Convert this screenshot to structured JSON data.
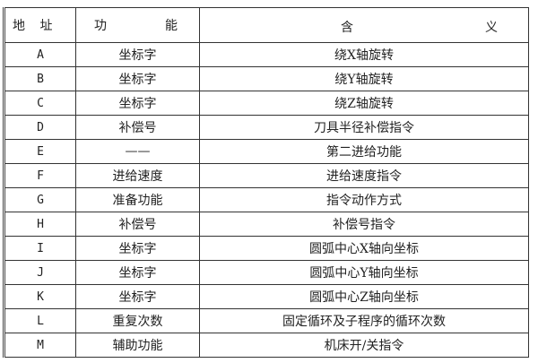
{
  "header": {
    "address": "地 址",
    "function_a": "功",
    "function_b": "能",
    "meaning_a": "含",
    "meaning_b": "义"
  },
  "rows": [
    {
      "address": "A",
      "function": "坐标字",
      "meaning": "绕X轴旋转"
    },
    {
      "address": "B",
      "function": "坐标字",
      "meaning": "绕Y轴旋转"
    },
    {
      "address": "C",
      "function": "坐标字",
      "meaning": "绕Z轴旋转"
    },
    {
      "address": "D",
      "function": "补偿号",
      "meaning": "刀具半径补偿指令"
    },
    {
      "address": "E",
      "function": "——",
      "meaning": "第二进给功能"
    },
    {
      "address": "F",
      "function": "进给速度",
      "meaning": "进给速度指令"
    },
    {
      "address": "G",
      "function": "准备功能",
      "meaning": "指令动作方式"
    },
    {
      "address": "H",
      "function": "补偿号",
      "meaning": "补偿号指令"
    },
    {
      "address": "I",
      "function": "坐标字",
      "meaning": "圆弧中心X轴向坐标"
    },
    {
      "address": "J",
      "function": "坐标字",
      "meaning": "圆弧中心Y轴向坐标"
    },
    {
      "address": "K",
      "function": "坐标字",
      "meaning": "圆弧中心Z轴向坐标"
    },
    {
      "address": "L",
      "function": "重复次数",
      "meaning": "固定循环及子程序的循环次数"
    },
    {
      "address": "M",
      "function": "辅助功能",
      "meaning": "机床开/关指令"
    }
  ]
}
